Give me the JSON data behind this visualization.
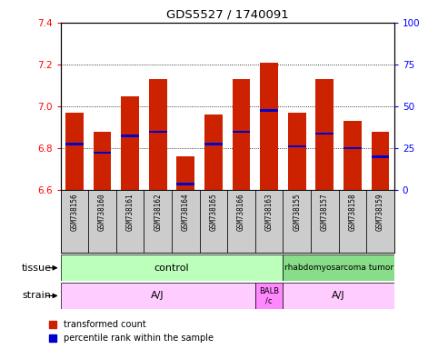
{
  "title": "GDS5527 / 1740091",
  "samples": [
    "GSM738156",
    "GSM738160",
    "GSM738161",
    "GSM738162",
    "GSM738164",
    "GSM738165",
    "GSM738166",
    "GSM738163",
    "GSM738155",
    "GSM738157",
    "GSM738158",
    "GSM738159"
  ],
  "bar_bottoms": [
    6.6,
    6.6,
    6.6,
    6.6,
    6.6,
    6.6,
    6.6,
    6.6,
    6.6,
    6.6,
    6.6,
    6.6
  ],
  "bar_tops": [
    6.97,
    6.88,
    7.05,
    7.13,
    6.76,
    6.96,
    7.13,
    7.21,
    6.97,
    7.13,
    6.93,
    6.88
  ],
  "blue_positions": [
    6.82,
    6.78,
    6.86,
    6.88,
    6.63,
    6.82,
    6.88,
    6.98,
    6.81,
    6.87,
    6.8,
    6.76
  ],
  "ylim_left": [
    6.6,
    7.4
  ],
  "ylim_right": [
    0,
    100
  ],
  "yticks_left": [
    6.6,
    6.8,
    7.0,
    7.2,
    7.4
  ],
  "yticks_right": [
    0,
    25,
    50,
    75,
    100
  ],
  "bar_color": "#cc2200",
  "blue_color": "#0000cc",
  "legend_items": [
    "transformed count",
    "percentile rank within the sample"
  ],
  "plot_bg": "#ffffff",
  "gray_bg": "#cccccc",
  "control_color": "#bbffbb",
  "rhab_color": "#88dd88",
  "strain_light": "#ffccff",
  "strain_dark": "#ff88ff"
}
